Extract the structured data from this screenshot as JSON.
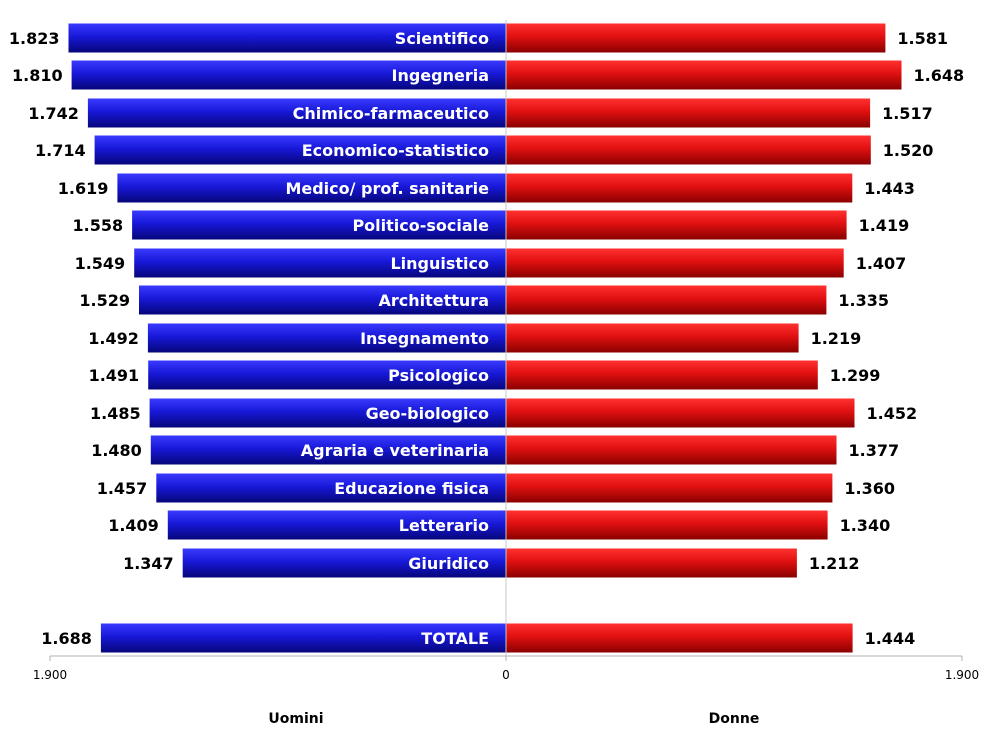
{
  "chart_data": {
    "type": "bar",
    "orientation": "horizontal-butterfly",
    "categories": [
      "Scientifico",
      "Ingegneria",
      "Chimico-farmaceutico",
      "Economico-statistico",
      "Medico/ prof. sanitarie",
      "Politico-sociale",
      "Linguistico",
      "Architettura",
      "Insegnamento",
      "Psicologico",
      "Geo-biologico",
      "Agraria e veterinaria",
      "Educazione fisica",
      "Letterario",
      "Giuridico",
      "TOTALE"
    ],
    "series": [
      {
        "name": "Uomini",
        "color": "#1a1acc",
        "values": [
          1823,
          1810,
          1742,
          1714,
          1619,
          1558,
          1549,
          1529,
          1492,
          1491,
          1485,
          1480,
          1457,
          1409,
          1347,
          1688
        ],
        "labels": [
          "1.823",
          "1.810",
          "1.742",
          "1.714",
          "1.619",
          "1.558",
          "1.549",
          "1.529",
          "1.492",
          "1.491",
          "1.485",
          "1.480",
          "1.457",
          "1.409",
          "1.347",
          "1.688"
        ]
      },
      {
        "name": "Donne",
        "color": "#dd1111",
        "values": [
          1581,
          1648,
          1517,
          1520,
          1443,
          1419,
          1407,
          1335,
          1219,
          1299,
          1452,
          1377,
          1360,
          1340,
          1212,
          1444
        ],
        "labels": [
          "1.581",
          "1.648",
          "1.517",
          "1.520",
          "1.443",
          "1.419",
          "1.407",
          "1.335",
          "1.219",
          "1.299",
          "1.452",
          "1.377",
          "1.360",
          "1.340",
          "1.212",
          "1.444"
        ]
      }
    ],
    "xlim": [
      0,
      1900
    ],
    "xticks": [
      "1.900",
      "0",
      "1.900"
    ],
    "left_axis_title": "Uomini",
    "right_axis_title": "Donne",
    "grid": false,
    "legend": "none"
  }
}
